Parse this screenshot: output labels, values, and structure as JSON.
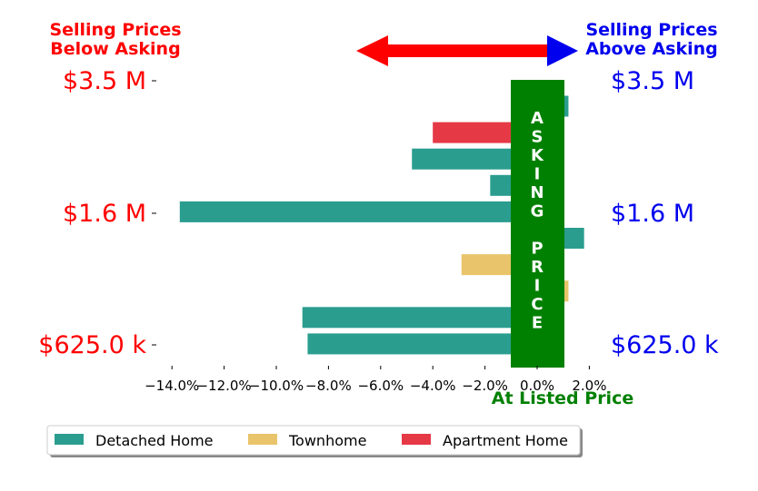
{
  "chart_data": {
    "type": "bar",
    "orientation": "horizontal",
    "x_tick_labels": [
      "−14.0%",
      "−12.0%",
      "−10.0%",
      "−8.0%",
      "−6.0%",
      "−4.0%",
      "−2.0%",
      "0.0%",
      "2.0%"
    ],
    "x_ticks": [
      -14,
      -12,
      -10,
      -8,
      -6,
      -4,
      -2,
      0,
      2
    ],
    "xlim": [
      -14.4,
      2.8
    ],
    "xlabel": "At Listed Price",
    "y_tick_labels": [
      "$3.5 M",
      "$1.6 M",
      "$625.0 k"
    ],
    "bars": [
      {
        "series": "Detached Home",
        "value": 1.2
      },
      {
        "series": "Apartment Home",
        "value": -4.0
      },
      {
        "series": "Detached Home",
        "value": -4.8
      },
      {
        "series": "Detached Home",
        "value": -1.8
      },
      {
        "series": "Detached Home",
        "value": -13.7
      },
      {
        "series": "Detached Home",
        "value": 1.8
      },
      {
        "series": "Townhome",
        "value": -2.9
      },
      {
        "series": "Townhome",
        "value": 1.2
      },
      {
        "series": "Detached Home",
        "value": -9.0
      },
      {
        "series": "Detached Home",
        "value": -8.8
      }
    ],
    "series": [
      {
        "name": "Detached Home",
        "color": "#2a9d8f"
      },
      {
        "name": "Townhome",
        "color": "#e9c46a"
      },
      {
        "name": "Apartment Home",
        "color": "#e63946"
      }
    ],
    "annotations": {
      "below_label": "Selling Prices\nBelow Asking",
      "above_label": "Selling Prices\nAbove Asking",
      "asking_price_text": "ASKING PRICE"
    },
    "colors": {
      "below": "#ff0000",
      "above": "#0000ee",
      "asking_band": "#008000",
      "arrow": "#ff0000",
      "arrow_head_right": "#0000ee"
    },
    "legend_position": "bottom-left"
  }
}
